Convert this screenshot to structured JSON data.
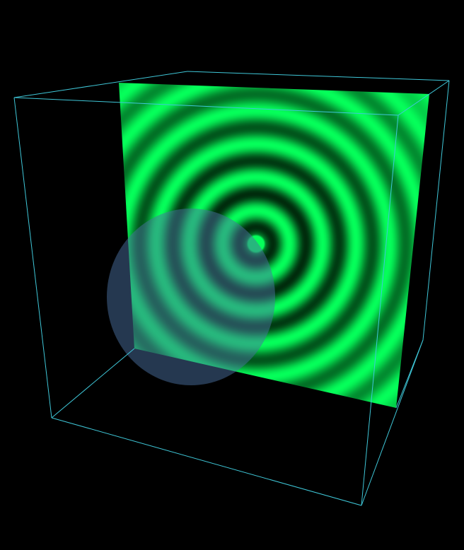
{
  "scene": {
    "background_color": "#000000",
    "bounding_box": {
      "edge_color": "#3fc7d8"
    },
    "ripple_slice": {
      "color_bright": "#05ff5a",
      "color_dark": "#002a0c",
      "ring_count": 7
    },
    "sphere": {
      "color": "#4a6fa0",
      "opacity": 0.5
    }
  }
}
